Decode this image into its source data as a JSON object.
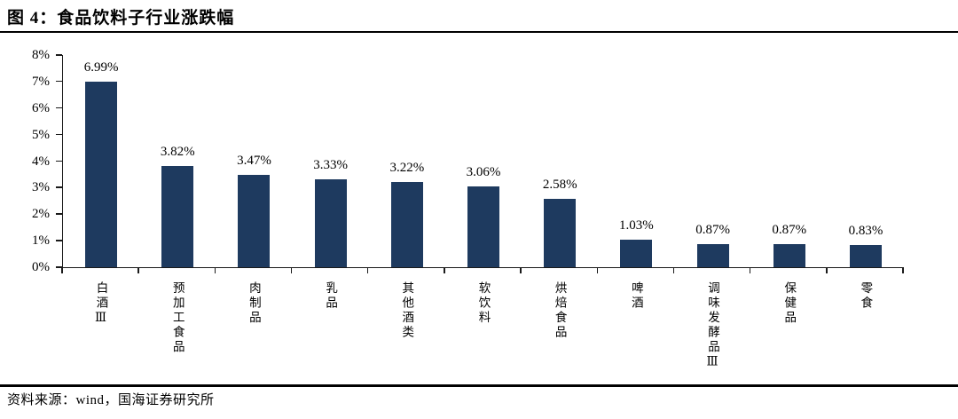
{
  "figure": {
    "title": "图 4：食品饮料子行业涨跌幅",
    "source": "资料来源：wind，国海证券研究所"
  },
  "chart_data": {
    "type": "bar",
    "title": "食品饮料子行业涨跌幅",
    "categories": [
      "白酒Ⅲ",
      "预加工食品",
      "肉制品",
      "乳品",
      "其他酒类",
      "软饮料",
      "烘焙食品",
      "啤酒",
      "调味发酵品Ⅲ",
      "保健品",
      "零食"
    ],
    "values": [
      6.99,
      3.82,
      3.47,
      3.33,
      3.22,
      3.06,
      2.58,
      1.03,
      0.87,
      0.87,
      0.83
    ],
    "value_labels": [
      "6.99%",
      "3.82%",
      "3.47%",
      "3.33%",
      "3.22%",
      "3.06%",
      "2.58%",
      "1.03%",
      "0.87%",
      "0.87%",
      "0.83%"
    ],
    "xlabel": "",
    "ylabel": "",
    "ylim": [
      0,
      8
    ],
    "ytick_step": 1,
    "ytick_labels": [
      "0%",
      "1%",
      "2%",
      "3%",
      "4%",
      "5%",
      "6%",
      "7%",
      "8%"
    ],
    "grid": false,
    "legend": false,
    "bar_color": "#1e3a5f",
    "axis_color": "#1a1a1a",
    "text_color": "#000000"
  }
}
